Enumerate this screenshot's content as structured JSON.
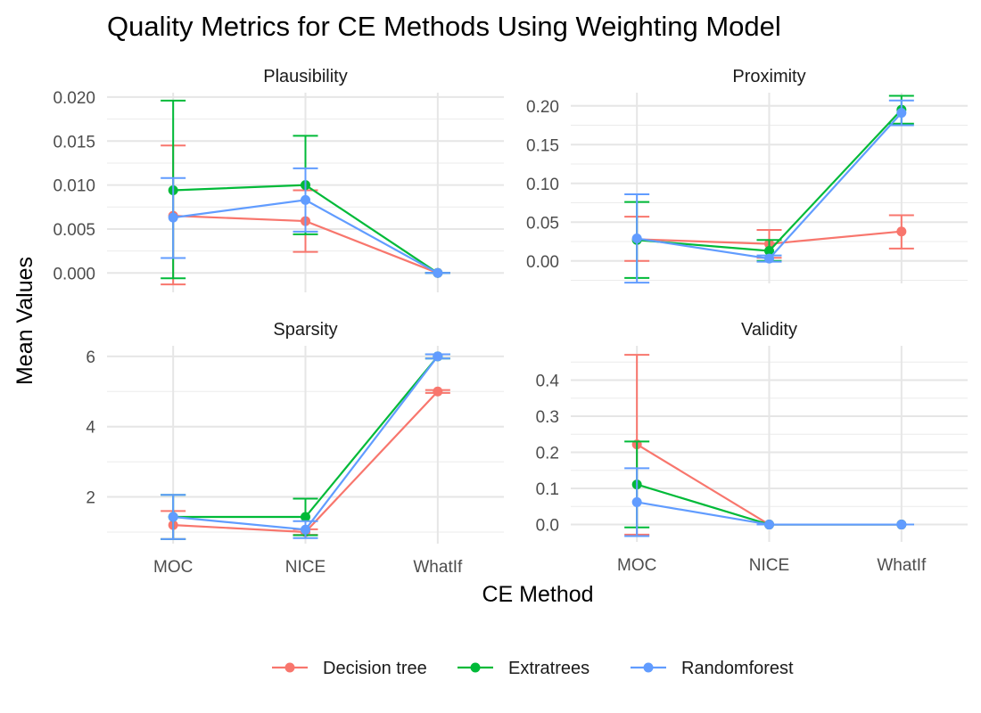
{
  "title": "Quality Metrics for CE Methods Using Weighting Model",
  "xlabel": "CE Method",
  "ylabel": "Mean Values",
  "colors": {
    "Decision tree": "#F8766D",
    "Extratrees": "#00BA38",
    "Randomforest": "#619CFF"
  },
  "legend_entries": [
    "Decision tree",
    "Extratrees",
    "Randomforest"
  ],
  "chart_data": [
    {
      "type": "line",
      "panel": "Plausibility",
      "categories": [
        "MOC",
        "NICE",
        "WhatIf"
      ],
      "ylim": [
        -0.0022,
        0.0205
      ],
      "yticks": [
        0.0,
        0.005,
        0.01,
        0.015,
        0.02
      ],
      "ytick_labels": [
        "0.000",
        "0.005",
        "0.010",
        "0.015",
        "0.020"
      ],
      "show_x_ticks": false,
      "series": [
        {
          "name": "Decision tree",
          "values": [
            0.0065,
            0.0059,
            0.0
          ],
          "lower": [
            -0.0013,
            0.0024,
            0.0
          ],
          "upper": [
            0.0145,
            0.0094,
            0.0
          ]
        },
        {
          "name": "Extratrees",
          "values": [
            0.0094,
            0.01,
            0.0
          ],
          "lower": [
            -0.0006,
            0.0044,
            0.0
          ],
          "upper": [
            0.0196,
            0.0156,
            0.0
          ]
        },
        {
          "name": "Randomforest",
          "values": [
            0.0063,
            0.0083,
            0.0
          ],
          "lower": [
            0.0017,
            0.0047,
            0.0
          ],
          "upper": [
            0.0108,
            0.0119,
            0.0
          ]
        }
      ]
    },
    {
      "type": "line",
      "panel": "Proximity",
      "categories": [
        "MOC",
        "NICE",
        "WhatIf"
      ],
      "ylim": [
        -0.029,
        0.217
      ],
      "yticks": [
        0.0,
        0.05,
        0.1,
        0.15,
        0.2
      ],
      "ytick_labels": [
        "0.00",
        "0.05",
        "0.10",
        "0.15",
        "0.20"
      ],
      "show_x_ticks": false,
      "series": [
        {
          "name": "Decision tree",
          "values": [
            0.028,
            0.022,
            0.038
          ],
          "lower": [
            0.0,
            0.004,
            0.016
          ],
          "upper": [
            0.057,
            0.04,
            0.059
          ]
        },
        {
          "name": "Extratrees",
          "values": [
            0.027,
            0.013,
            0.195
          ],
          "lower": [
            -0.022,
            0.0,
            0.177
          ],
          "upper": [
            0.076,
            0.027,
            0.213
          ]
        },
        {
          "name": "Randomforest",
          "values": [
            0.029,
            0.003,
            0.191
          ],
          "lower": [
            -0.028,
            -0.001,
            0.175
          ],
          "upper": [
            0.086,
            0.007,
            0.207
          ]
        }
      ]
    },
    {
      "type": "line",
      "panel": "Sparsity",
      "categories": [
        "MOC",
        "NICE",
        "WhatIf"
      ],
      "ylim": [
        0.67,
        6.3
      ],
      "yticks": [
        2,
        4,
        6
      ],
      "ytick_labels": [
        "2",
        "4",
        "6"
      ],
      "show_x_ticks": true,
      "series": [
        {
          "name": "Decision tree",
          "values": [
            1.2,
            1.0,
            5.0
          ],
          "lower": [
            0.8,
            0.92,
            4.96
          ],
          "upper": [
            1.6,
            1.08,
            5.04
          ]
        },
        {
          "name": "Extratrees",
          "values": [
            1.43,
            1.43,
            6.0
          ],
          "lower": [
            0.8,
            0.91,
            5.94
          ],
          "upper": [
            2.06,
            1.95,
            6.06
          ]
        },
        {
          "name": "Randomforest",
          "values": [
            1.43,
            1.07,
            6.0
          ],
          "lower": [
            0.8,
            0.83,
            5.94
          ],
          "upper": [
            2.06,
            1.31,
            6.06
          ]
        }
      ]
    },
    {
      "type": "line",
      "panel": "Validity",
      "categories": [
        "MOC",
        "NICE",
        "WhatIf"
      ],
      "ylim": [
        -0.048,
        0.495
      ],
      "yticks": [
        0.0,
        0.1,
        0.2,
        0.3,
        0.4
      ],
      "ytick_labels": [
        "0.0",
        "0.1",
        "0.2",
        "0.3",
        "0.4"
      ],
      "show_x_ticks": true,
      "series": [
        {
          "name": "Decision tree",
          "values": [
            0.222,
            0.0,
            0.0
          ],
          "lower": [
            -0.028,
            0.0,
            0.0
          ],
          "upper": [
            0.47,
            0.0,
            0.0
          ]
        },
        {
          "name": "Extratrees",
          "values": [
            0.111,
            0.0,
            0.0
          ],
          "lower": [
            -0.008,
            0.0,
            0.0
          ],
          "upper": [
            0.23,
            0.0,
            0.0
          ]
        },
        {
          "name": "Randomforest",
          "values": [
            0.062,
            0.0,
            0.0
          ],
          "lower": [
            -0.032,
            0.0,
            0.0
          ],
          "upper": [
            0.156,
            0.0,
            0.0
          ]
        }
      ]
    }
  ]
}
